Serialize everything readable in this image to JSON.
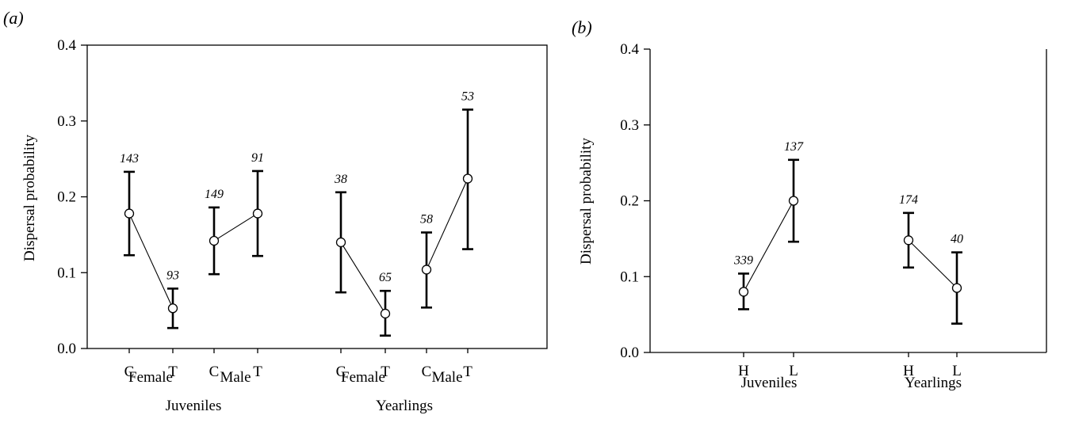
{
  "chart_data": [
    {
      "type": "scatter",
      "panel_label": "(a)",
      "ylabel": "Dispersal probability",
      "ylim": [
        0,
        0.4
      ],
      "yticks": [
        "0.0",
        "0.1",
        "0.2",
        "0.3",
        "0.4"
      ],
      "points": [
        {
          "age": "Juveniles",
          "sex": "Female",
          "group": "C",
          "value": 0.178,
          "lower": 0.123,
          "upper": 0.233,
          "n": "143"
        },
        {
          "age": "Juveniles",
          "sex": "Female",
          "group": "T",
          "value": 0.053,
          "lower": 0.027,
          "upper": 0.079,
          "n": "93"
        },
        {
          "age": "Juveniles",
          "sex": "Male",
          "group": "C",
          "value": 0.142,
          "lower": 0.098,
          "upper": 0.186,
          "n": "149"
        },
        {
          "age": "Juveniles",
          "sex": "Male",
          "group": "T",
          "value": 0.178,
          "lower": 0.122,
          "upper": 0.234,
          "n": "91"
        },
        {
          "age": "Yearlings",
          "sex": "Female",
          "group": "C",
          "value": 0.14,
          "lower": 0.074,
          "upper": 0.206,
          "n": "38"
        },
        {
          "age": "Yearlings",
          "sex": "Female",
          "group": "T",
          "value": 0.046,
          "lower": 0.017,
          "upper": 0.076,
          "n": "65"
        },
        {
          "age": "Yearlings",
          "sex": "Male",
          "group": "C",
          "value": 0.104,
          "lower": 0.054,
          "upper": 0.153,
          "n": "58"
        },
        {
          "age": "Yearlings",
          "sex": "Male",
          "group": "T",
          "value": 0.224,
          "lower": 0.131,
          "upper": 0.315,
          "n": "53"
        }
      ],
      "sex_labels": [
        "Female",
        "Male",
        "Female",
        "Male"
      ],
      "age_labels": [
        "Juveniles",
        "Yearlings"
      ]
    },
    {
      "type": "scatter",
      "panel_label": "(b)",
      "ylabel": "Dispersal probability",
      "ylim": [
        0,
        0.4
      ],
      "yticks": [
        "0.0",
        "0.1",
        "0.2",
        "0.3",
        "0.4"
      ],
      "points": [
        {
          "age": "Juveniles",
          "group": "H",
          "value": 0.08,
          "lower": 0.057,
          "upper": 0.104,
          "n": "339"
        },
        {
          "age": "Juveniles",
          "group": "L",
          "value": 0.2,
          "lower": 0.146,
          "upper": 0.254,
          "n": "137"
        },
        {
          "age": "Yearlings",
          "group": "H",
          "value": 0.148,
          "lower": 0.112,
          "upper": 0.184,
          "n": "174"
        },
        {
          "age": "Yearlings",
          "group": "L",
          "value": 0.085,
          "lower": 0.038,
          "upper": 0.132,
          "n": "40"
        }
      ],
      "age_labels": [
        "Juveniles",
        "Yearlings"
      ]
    }
  ]
}
